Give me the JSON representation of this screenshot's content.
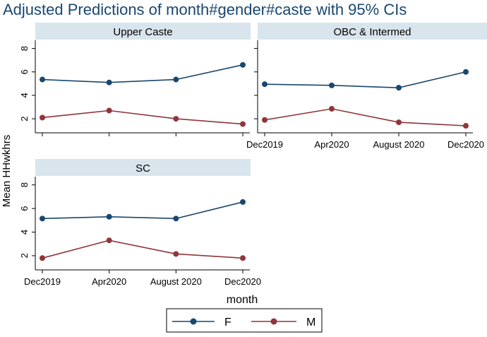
{
  "title": "Adjusted Predictions of month#gender#caste with 95% CIs",
  "ylabel": "Mean HHwkhrs",
  "xlabel": "month",
  "colors": {
    "F": "#1a476f",
    "M": "#90353b",
    "strip": "#d8e5ec",
    "axis": "#000000"
  },
  "chart_data": [
    {
      "type": "line",
      "panel": "Upper Caste",
      "categories": [
        "Dec2019",
        "Apr2020",
        "August 2020",
        "Dec2020"
      ],
      "series": [
        {
          "name": "F",
          "values": [
            5.35,
            5.1,
            5.35,
            6.6
          ]
        },
        {
          "name": "M",
          "values": [
            2.1,
            2.7,
            2.0,
            1.55
          ]
        }
      ],
      "ylim": [
        0.8,
        8.7
      ],
      "yticks": [
        2,
        4,
        6,
        8
      ],
      "show_x_ticklabels": false,
      "show_y_ticklabels": true
    },
    {
      "type": "line",
      "panel": "OBC & Intermed",
      "categories": [
        "Dec2019",
        "Apr2020",
        "August 2020",
        "Dec2020"
      ],
      "series": [
        {
          "name": "F",
          "values": [
            4.95,
            4.85,
            4.65,
            6.0
          ]
        },
        {
          "name": "M",
          "values": [
            1.9,
            2.85,
            1.7,
            1.4
          ]
        }
      ],
      "ylim": [
        0.8,
        8.7
      ],
      "yticks": [
        2,
        4,
        6,
        8
      ],
      "show_x_ticklabels": true,
      "show_y_ticklabels": false
    },
    {
      "type": "line",
      "panel": "SC",
      "categories": [
        "Dec2019",
        "Apr2020",
        "August 2020",
        "Dec2020"
      ],
      "series": [
        {
          "name": "F",
          "values": [
            5.15,
            5.3,
            5.15,
            6.55
          ]
        },
        {
          "name": "M",
          "values": [
            1.8,
            3.3,
            2.15,
            1.8
          ]
        }
      ],
      "ylim": [
        0.8,
        8.7
      ],
      "yticks": [
        2,
        4,
        6,
        8
      ],
      "show_x_ticklabels": true,
      "show_y_ticklabels": true
    }
  ],
  "legend": [
    {
      "name": "F",
      "label": "F"
    },
    {
      "name": "M",
      "label": "M"
    }
  ]
}
